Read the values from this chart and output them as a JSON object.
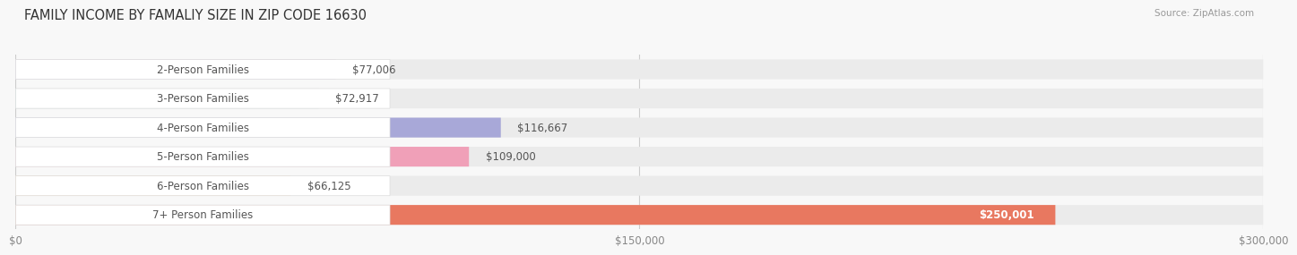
{
  "title": "FAMILY INCOME BY FAMALIY SIZE IN ZIP CODE 16630",
  "source": "Source: ZipAtlas.com",
  "categories": [
    "2-Person Families",
    "3-Person Families",
    "4-Person Families",
    "5-Person Families",
    "6-Person Families",
    "7+ Person Families"
  ],
  "values": [
    77006,
    72917,
    116667,
    109000,
    66125,
    250001
  ],
  "value_labels": [
    "$77,006",
    "$72,917",
    "$116,667",
    "$109,000",
    "$66,125",
    "$250,001"
  ],
  "bar_colors": [
    "#c9b8d8",
    "#8ecece",
    "#a8a8d8",
    "#f0a0b8",
    "#f8c88a",
    "#e87860"
  ],
  "bar_bg_color": "#ebebeb",
  "xlim": [
    0,
    300000
  ],
  "xtick_values": [
    0,
    150000,
    300000
  ],
  "xtick_labels": [
    "$0",
    "$150,000",
    "$300,000"
  ],
  "background_color": "#f8f8f8",
  "title_fontsize": 10.5,
  "label_fontsize": 8.5,
  "value_fontsize": 8.5
}
